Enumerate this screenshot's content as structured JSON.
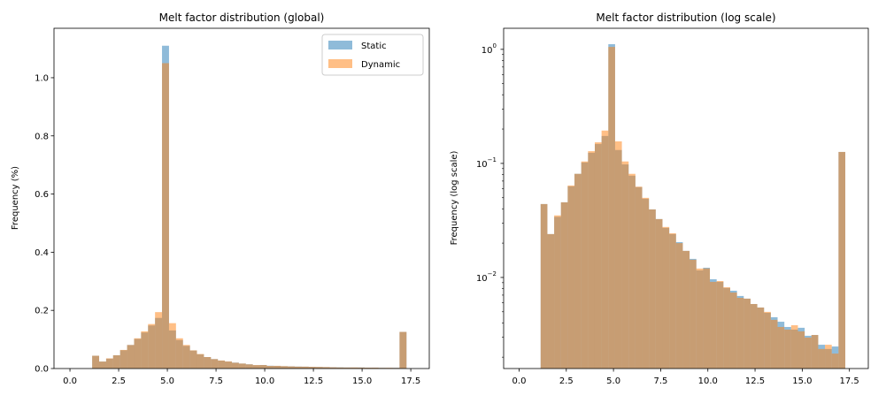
{
  "chart_data": [
    {
      "type": "bar",
      "title": "Melt factor distribution (global)",
      "xlabel": "",
      "ylabel": "Frequency (%)",
      "xlim": [
        -0.82,
        18.45
      ],
      "ylim": [
        0,
        1.17
      ],
      "yscale": "linear",
      "xticks": [
        "0.0",
        "2.5",
        "5.0",
        "7.5",
        "10.0",
        "12.5",
        "15.0",
        "17.5"
      ],
      "yticks": [
        "0.0",
        "0.2",
        "0.4",
        "0.6",
        "0.8",
        "1.0"
      ],
      "legend": "top-right",
      "grid": false
    },
    {
      "type": "bar",
      "title": "Melt factor distribution (log scale)",
      "xlabel": "",
      "ylabel": "Frequency (log scale)",
      "xlim": [
        -0.82,
        18.5
      ],
      "ylim": [
        0.00159,
        1.53
      ],
      "yscale": "log",
      "xticks": [
        "0.0",
        "2.5",
        "5.0",
        "7.5",
        "10.0",
        "12.5",
        "15.0",
        "17.5"
      ],
      "yticks": [
        "10^0",
        "10^-1",
        "10^-2"
      ],
      "legend": "none",
      "grid": false
    }
  ],
  "bins": {
    "start": 1.14,
    "width": 0.3587,
    "count": 45
  },
  "series": [
    {
      "name": "Static",
      "color": "#1f77b4",
      "alpha": 0.5,
      "values": [
        0.044,
        0.024,
        0.034,
        0.0456,
        0.063,
        0.081,
        0.102,
        0.124,
        0.148,
        0.174,
        1.11,
        0.131,
        0.098,
        0.078,
        0.062,
        0.049,
        0.0395,
        0.0325,
        0.0272,
        0.024,
        0.0204,
        0.0171,
        0.01455,
        0.01153,
        0.01217,
        0.00964,
        0.00915,
        0.0081,
        0.00765,
        0.00688,
        0.00652,
        0.00585,
        0.00545,
        0.0049,
        0.00448,
        0.00409,
        0.00368,
        0.00349,
        0.00362,
        0.00308,
        0.00313,
        0.00257,
        0.00236,
        0.00248,
        0.126
      ]
    },
    {
      "name": "Dynamic",
      "color": "#ff7f0e",
      "alpha": 0.5,
      "values": [
        0.044,
        0.024,
        0.035,
        0.0456,
        0.064,
        0.081,
        0.104,
        0.128,
        0.153,
        0.194,
        1.05,
        0.156,
        0.104,
        0.081,
        0.0625,
        0.0499,
        0.0395,
        0.0325,
        0.0277,
        0.0244,
        0.02,
        0.0171,
        0.0143,
        0.01197,
        0.012,
        0.00915,
        0.0093,
        0.0082,
        0.00738,
        0.00663,
        0.00652,
        0.00585,
        0.00545,
        0.00499,
        0.00425,
        0.00368,
        0.00349,
        0.00381,
        0.00337,
        0.00297,
        0.00313,
        0.00236,
        0.00257,
        0.00215,
        0.126
      ]
    }
  ]
}
